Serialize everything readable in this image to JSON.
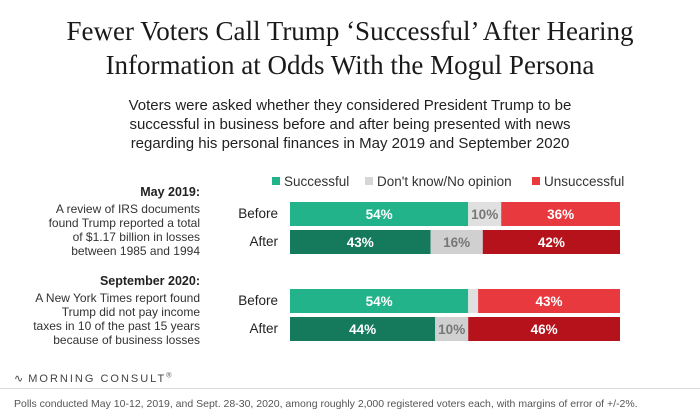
{
  "chart_data": {
    "type": "bar",
    "orientation": "horizontal-stacked",
    "title_lines": [
      "Fewer Voters Call Trump ‘Successful’ After Hearing",
      "Information at Odds With the Mogul Persona"
    ],
    "subtitle_lines": [
      "Voters were asked whether they considered President Trump to be",
      "successful in business before and after being presented with news",
      "regarding his personal finances in May 2019 and September 2020"
    ],
    "legend": [
      {
        "key": "successful",
        "label": "Successful",
        "color": "#22b38a"
      },
      {
        "key": "dont_know",
        "label": "Don't know/No opinion",
        "color": "#d6d6d6"
      },
      {
        "key": "unsuccessful",
        "label": "Unsuccessful",
        "color": "#e8393f"
      }
    ],
    "colors": {
      "before": {
        "successful": "#22b38a",
        "dont_know": "#e0e0e0",
        "unsuccessful": "#e8393f"
      },
      "after": {
        "successful": "#157a5c",
        "dont_know": "#d0d0d0",
        "unsuccessful": "#b5121b"
      }
    },
    "groups": [
      {
        "title": "May 2019:",
        "description": [
          "A review of IRS documents",
          "found Trump reported a total",
          "of $1.17 billion in losses",
          "between 1985 and 1994"
        ],
        "rows": [
          {
            "label": "Before",
            "successful": 54,
            "dont_know": 10,
            "unsuccessful": 36,
            "labels": {
              "successful": "54%",
              "dont_know": "10%",
              "unsuccessful": "36%"
            }
          },
          {
            "label": "After",
            "successful": 43,
            "dont_know": 16,
            "unsuccessful": 42,
            "labels": {
              "successful": "43%",
              "dont_know": "16%",
              "unsuccessful": "42%"
            }
          }
        ]
      },
      {
        "title": "September 2020:",
        "description": [
          "A New York Times report found",
          "Trump did not pay income",
          "taxes in 10 of the past 15 years",
          "because of business losses"
        ],
        "rows": [
          {
            "label": "Before",
            "successful": 54,
            "dont_know": 3,
            "unsuccessful": 43,
            "labels": {
              "successful": "54%",
              "dont_know": "",
              "unsuccessful": "43%"
            }
          },
          {
            "label": "After",
            "successful": 44,
            "dont_know": 10,
            "unsuccessful": 46,
            "labels": {
              "successful": "44%",
              "dont_know": "10%",
              "unsuccessful": "46%"
            }
          }
        ]
      }
    ],
    "xlim": [
      0,
      100
    ]
  },
  "brand": {
    "name": "MORNING CONSULT",
    "mark": "∿",
    "symbol": "®"
  },
  "footnote": "Polls conducted May 10-12, 2019, and Sept. 28-30, 2020, among roughly 2,000 registered voters each, with margins of error of +/-2%."
}
